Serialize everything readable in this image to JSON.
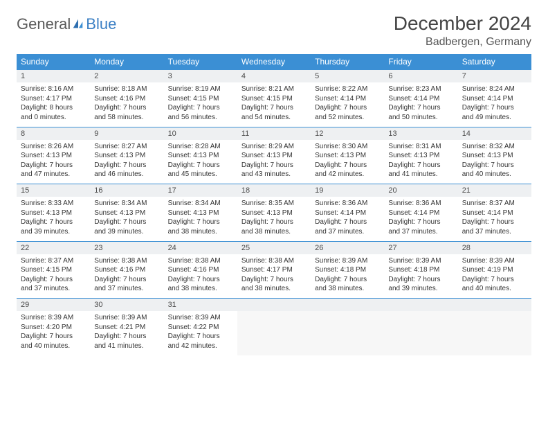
{
  "logo": {
    "part1": "General",
    "part2": "Blue"
  },
  "title": "December 2024",
  "location": "Badbergen, Germany",
  "colors": {
    "header_bg": "#3b8fd4",
    "header_text": "#ffffff",
    "daynum_bg": "#eef0f2",
    "row_border": "#3b8fd4",
    "text": "#333333",
    "logo_gray": "#5a5a5a",
    "logo_blue": "#3b7fc4"
  },
  "weekdays": [
    "Sunday",
    "Monday",
    "Tuesday",
    "Wednesday",
    "Thursday",
    "Friday",
    "Saturday"
  ],
  "weeks": [
    {
      "nums": [
        "1",
        "2",
        "3",
        "4",
        "5",
        "6",
        "7"
      ],
      "cells": [
        {
          "sunrise": "Sunrise: 8:16 AM",
          "sunset": "Sunset: 4:17 PM",
          "dl1": "Daylight: 8 hours",
          "dl2": "and 0 minutes."
        },
        {
          "sunrise": "Sunrise: 8:18 AM",
          "sunset": "Sunset: 4:16 PM",
          "dl1": "Daylight: 7 hours",
          "dl2": "and 58 minutes."
        },
        {
          "sunrise": "Sunrise: 8:19 AM",
          "sunset": "Sunset: 4:15 PM",
          "dl1": "Daylight: 7 hours",
          "dl2": "and 56 minutes."
        },
        {
          "sunrise": "Sunrise: 8:21 AM",
          "sunset": "Sunset: 4:15 PM",
          "dl1": "Daylight: 7 hours",
          "dl2": "and 54 minutes."
        },
        {
          "sunrise": "Sunrise: 8:22 AM",
          "sunset": "Sunset: 4:14 PM",
          "dl1": "Daylight: 7 hours",
          "dl2": "and 52 minutes."
        },
        {
          "sunrise": "Sunrise: 8:23 AM",
          "sunset": "Sunset: 4:14 PM",
          "dl1": "Daylight: 7 hours",
          "dl2": "and 50 minutes."
        },
        {
          "sunrise": "Sunrise: 8:24 AM",
          "sunset": "Sunset: 4:14 PM",
          "dl1": "Daylight: 7 hours",
          "dl2": "and 49 minutes."
        }
      ]
    },
    {
      "nums": [
        "8",
        "9",
        "10",
        "11",
        "12",
        "13",
        "14"
      ],
      "cells": [
        {
          "sunrise": "Sunrise: 8:26 AM",
          "sunset": "Sunset: 4:13 PM",
          "dl1": "Daylight: 7 hours",
          "dl2": "and 47 minutes."
        },
        {
          "sunrise": "Sunrise: 8:27 AM",
          "sunset": "Sunset: 4:13 PM",
          "dl1": "Daylight: 7 hours",
          "dl2": "and 46 minutes."
        },
        {
          "sunrise": "Sunrise: 8:28 AM",
          "sunset": "Sunset: 4:13 PM",
          "dl1": "Daylight: 7 hours",
          "dl2": "and 45 minutes."
        },
        {
          "sunrise": "Sunrise: 8:29 AM",
          "sunset": "Sunset: 4:13 PM",
          "dl1": "Daylight: 7 hours",
          "dl2": "and 43 minutes."
        },
        {
          "sunrise": "Sunrise: 8:30 AM",
          "sunset": "Sunset: 4:13 PM",
          "dl1": "Daylight: 7 hours",
          "dl2": "and 42 minutes."
        },
        {
          "sunrise": "Sunrise: 8:31 AM",
          "sunset": "Sunset: 4:13 PM",
          "dl1": "Daylight: 7 hours",
          "dl2": "and 41 minutes."
        },
        {
          "sunrise": "Sunrise: 8:32 AM",
          "sunset": "Sunset: 4:13 PM",
          "dl1": "Daylight: 7 hours",
          "dl2": "and 40 minutes."
        }
      ]
    },
    {
      "nums": [
        "15",
        "16",
        "17",
        "18",
        "19",
        "20",
        "21"
      ],
      "cells": [
        {
          "sunrise": "Sunrise: 8:33 AM",
          "sunset": "Sunset: 4:13 PM",
          "dl1": "Daylight: 7 hours",
          "dl2": "and 39 minutes."
        },
        {
          "sunrise": "Sunrise: 8:34 AM",
          "sunset": "Sunset: 4:13 PM",
          "dl1": "Daylight: 7 hours",
          "dl2": "and 39 minutes."
        },
        {
          "sunrise": "Sunrise: 8:34 AM",
          "sunset": "Sunset: 4:13 PM",
          "dl1": "Daylight: 7 hours",
          "dl2": "and 38 minutes."
        },
        {
          "sunrise": "Sunrise: 8:35 AM",
          "sunset": "Sunset: 4:13 PM",
          "dl1": "Daylight: 7 hours",
          "dl2": "and 38 minutes."
        },
        {
          "sunrise": "Sunrise: 8:36 AM",
          "sunset": "Sunset: 4:14 PM",
          "dl1": "Daylight: 7 hours",
          "dl2": "and 37 minutes."
        },
        {
          "sunrise": "Sunrise: 8:36 AM",
          "sunset": "Sunset: 4:14 PM",
          "dl1": "Daylight: 7 hours",
          "dl2": "and 37 minutes."
        },
        {
          "sunrise": "Sunrise: 8:37 AM",
          "sunset": "Sunset: 4:14 PM",
          "dl1": "Daylight: 7 hours",
          "dl2": "and 37 minutes."
        }
      ]
    },
    {
      "nums": [
        "22",
        "23",
        "24",
        "25",
        "26",
        "27",
        "28"
      ],
      "cells": [
        {
          "sunrise": "Sunrise: 8:37 AM",
          "sunset": "Sunset: 4:15 PM",
          "dl1": "Daylight: 7 hours",
          "dl2": "and 37 minutes."
        },
        {
          "sunrise": "Sunrise: 8:38 AM",
          "sunset": "Sunset: 4:16 PM",
          "dl1": "Daylight: 7 hours",
          "dl2": "and 37 minutes."
        },
        {
          "sunrise": "Sunrise: 8:38 AM",
          "sunset": "Sunset: 4:16 PM",
          "dl1": "Daylight: 7 hours",
          "dl2": "and 38 minutes."
        },
        {
          "sunrise": "Sunrise: 8:38 AM",
          "sunset": "Sunset: 4:17 PM",
          "dl1": "Daylight: 7 hours",
          "dl2": "and 38 minutes."
        },
        {
          "sunrise": "Sunrise: 8:39 AM",
          "sunset": "Sunset: 4:18 PM",
          "dl1": "Daylight: 7 hours",
          "dl2": "and 38 minutes."
        },
        {
          "sunrise": "Sunrise: 8:39 AM",
          "sunset": "Sunset: 4:18 PM",
          "dl1": "Daylight: 7 hours",
          "dl2": "and 39 minutes."
        },
        {
          "sunrise": "Sunrise: 8:39 AM",
          "sunset": "Sunset: 4:19 PM",
          "dl1": "Daylight: 7 hours",
          "dl2": "and 40 minutes."
        }
      ]
    },
    {
      "nums": [
        "29",
        "30",
        "31",
        "",
        "",
        "",
        ""
      ],
      "cells": [
        {
          "sunrise": "Sunrise: 8:39 AM",
          "sunset": "Sunset: 4:20 PM",
          "dl1": "Daylight: 7 hours",
          "dl2": "and 40 minutes."
        },
        {
          "sunrise": "Sunrise: 8:39 AM",
          "sunset": "Sunset: 4:21 PM",
          "dl1": "Daylight: 7 hours",
          "dl2": "and 41 minutes."
        },
        {
          "sunrise": "Sunrise: 8:39 AM",
          "sunset": "Sunset: 4:22 PM",
          "dl1": "Daylight: 7 hours",
          "dl2": "and 42 minutes."
        },
        null,
        null,
        null,
        null
      ]
    }
  ]
}
